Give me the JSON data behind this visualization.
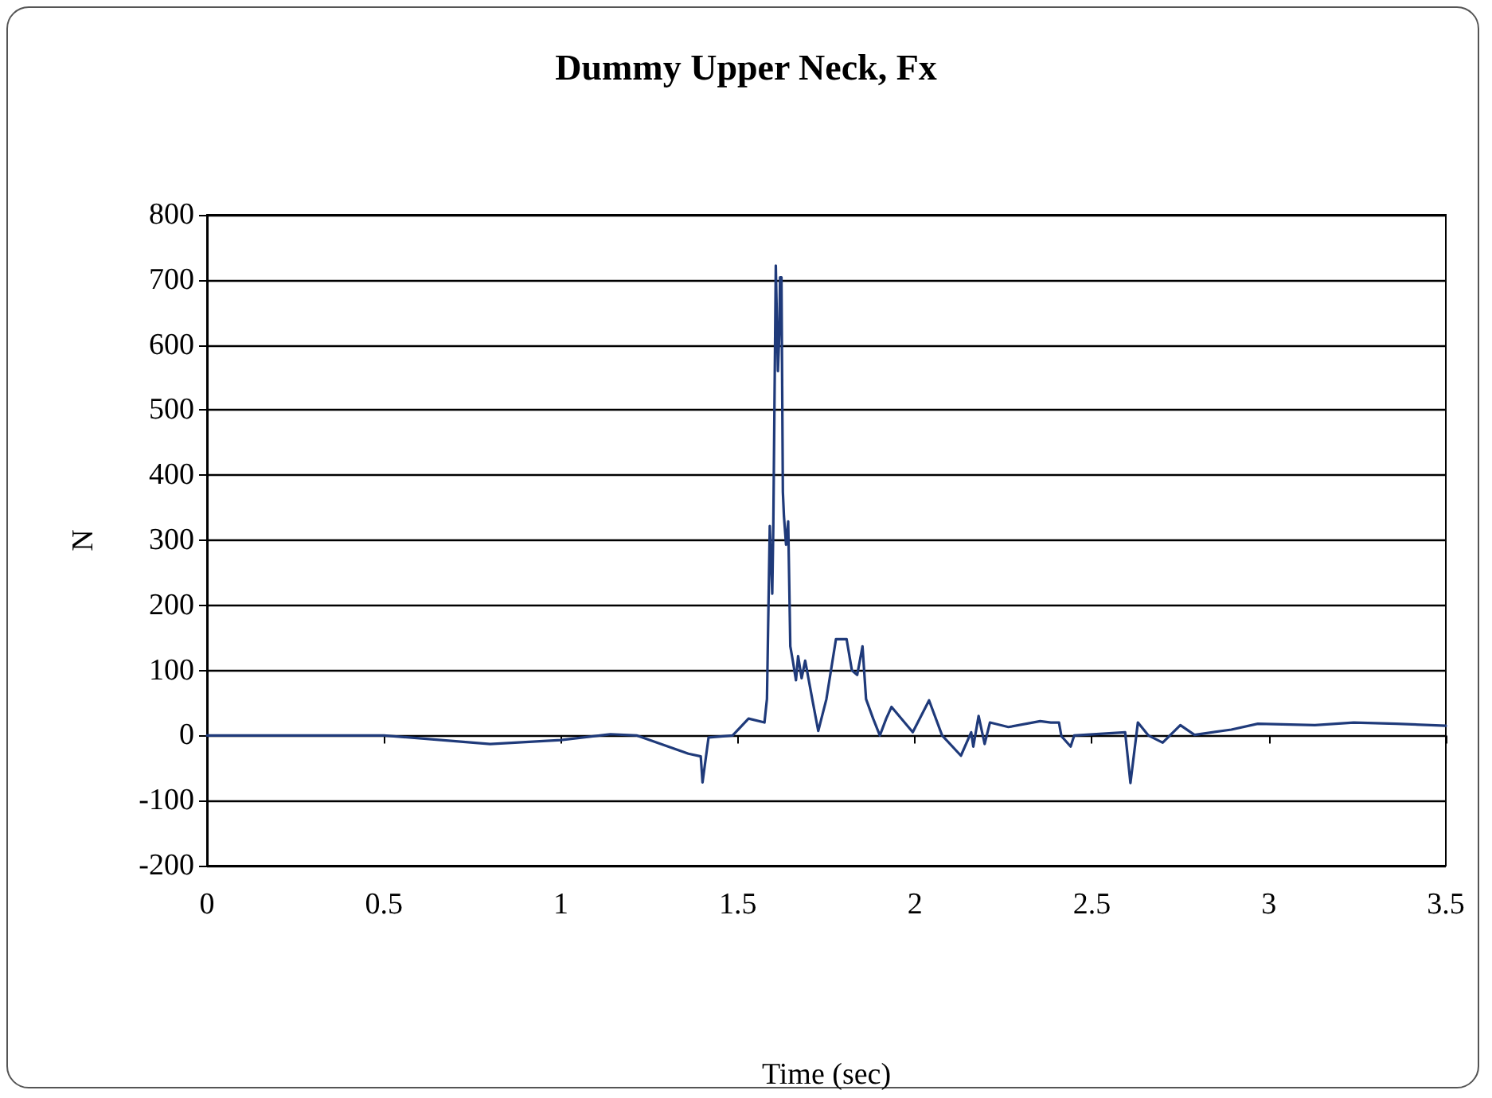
{
  "chart_data": {
    "type": "line",
    "title": "Dummy Upper Neck, Fx",
    "xlabel": "Time (sec)",
    "ylabel": "N",
    "xlim": [
      0,
      3.5
    ],
    "xticks": [
      0,
      0.5,
      1,
      1.5,
      2,
      2.5,
      3,
      3.5
    ],
    "ylim": [
      -200,
      800
    ],
    "yticks": [
      -200,
      -100,
      0,
      100,
      200,
      300,
      400,
      500,
      600,
      700,
      800
    ],
    "grid": "y",
    "marker": "none",
    "line_style": "solid",
    "series": [
      {
        "color": "#1f3a7a",
        "x": [
          0,
          0.5,
          0.8,
          1.0,
          1.14,
          1.215,
          1.36,
          1.395,
          1.4,
          1.417,
          1.485,
          1.53,
          1.575,
          1.582,
          1.59,
          1.597,
          1.6,
          1.607,
          1.613,
          1.617,
          1.619,
          1.623,
          1.627,
          1.63,
          1.636,
          1.642,
          1.648,
          1.655,
          1.664,
          1.67,
          1.68,
          1.69,
          1.71,
          1.727,
          1.75,
          1.777,
          1.807,
          1.822,
          1.837,
          1.852,
          1.862,
          1.882,
          1.901,
          1.919,
          1.934,
          1.994,
          2.04,
          2.077,
          2.13,
          2.159,
          2.165,
          2.18,
          2.197,
          2.212,
          2.264,
          2.354,
          2.384,
          2.407,
          2.414,
          2.44,
          2.45,
          2.594,
          2.609,
          2.63,
          2.66,
          2.7,
          2.75,
          2.79,
          2.894,
          2.969,
          3.13,
          3.24,
          3.36,
          3.5
        ],
        "values": [
          0,
          0,
          -13,
          -7,
          2,
          0,
          -28,
          -32,
          -72,
          -3,
          0,
          26,
          20,
          56,
          322,
          218,
          322,
          722,
          560,
          618,
          704,
          704,
          374,
          337,
          293,
          329,
          137,
          115,
          85,
          122,
          88,
          115,
          56,
          7,
          56,
          148,
          148,
          100,
          93,
          137,
          56,
          26,
          0,
          26,
          44,
          5,
          54,
          0,
          -31,
          5,
          -17,
          30,
          -13,
          20,
          13,
          22,
          20,
          20,
          -1,
          -17,
          0,
          5,
          -73,
          20,
          0,
          -11,
          16,
          1,
          9,
          18,
          16,
          20,
          18,
          15
        ]
      }
    ]
  }
}
